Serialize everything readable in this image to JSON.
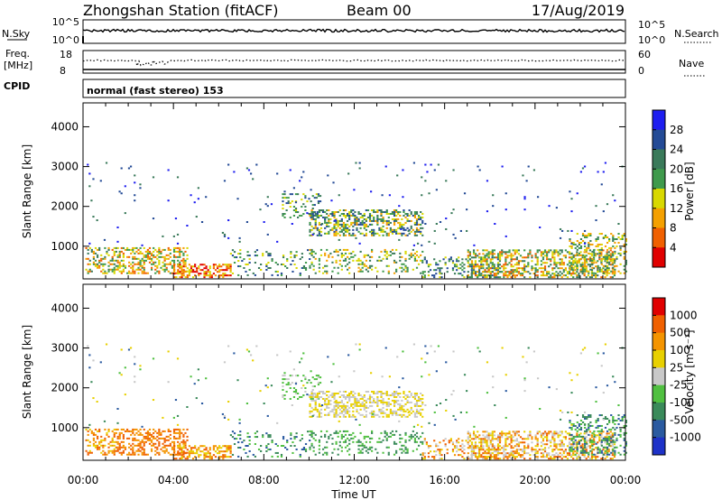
{
  "header": {
    "station": "Zhongshan Station (fitACF)",
    "beam": "Beam 00",
    "date": "17/Aug/2019"
  },
  "top_panel": {
    "left_label": "N.Sky",
    "left_ticks": [
      "10^5",
      "10^0"
    ],
    "right_ticks": [
      "10^5",
      "10^0"
    ],
    "right_label": "N.Search"
  },
  "freq_panel": {
    "left_label_top": "Freq.",
    "left_label_unit": "[MHz]",
    "left_ticks": [
      "18",
      "8"
    ],
    "right_ticks": [
      "60",
      "0"
    ],
    "right_label": "Nave"
  },
  "cpid": {
    "label": "CPID",
    "text": "normal (fast stereo) 153"
  },
  "colors": {
    "power": [
      "#1e1ef0",
      "#244b96",
      "#3a7a5a",
      "#3f9a4c",
      "#d8d800",
      "#f4a000",
      "#f06000",
      "#e00000"
    ],
    "velocity": [
      "#e00000",
      "#f06000",
      "#f49400",
      "#e8d000",
      "#c8c8c8",
      "#50c040",
      "#3a8a5a",
      "#2a5aa0",
      "#1e32c8"
    ]
  },
  "chart_data": [
    {
      "type": "heatmap",
      "name": "power",
      "ylabel": "Slant Range [km]",
      "yticks": [
        "4000",
        "3000",
        "2000",
        "1000"
      ],
      "ylim": [
        180,
        4600
      ],
      "xlim": [
        "00:00",
        "24:00"
      ],
      "colorbar": {
        "label": "Power [dB]",
        "ticks": [
          "28",
          "24",
          "20",
          "16",
          "12",
          "8",
          "4"
        ],
        "range": [
          0,
          32
        ]
      }
    },
    {
      "type": "heatmap",
      "name": "velocity",
      "ylabel": "Slant Range [km]",
      "yticks": [
        "4000",
        "3000",
        "2000",
        "1000"
      ],
      "ylim": [
        180,
        4600
      ],
      "xlim": [
        "00:00",
        "24:00"
      ],
      "xlabel": "Time UT",
      "xticks": [
        "00:00",
        "04:00",
        "08:00",
        "12:00",
        "16:00",
        "20:00",
        "00:00"
      ],
      "colorbar": {
        "label": "Velocity [m s⁻¹]",
        "ticks": [
          "1000",
          "500",
          "100",
          "25",
          "-25",
          "-100",
          "-500",
          "-1000"
        ],
        "range": [
          -1200,
          1200
        ]
      }
    }
  ]
}
